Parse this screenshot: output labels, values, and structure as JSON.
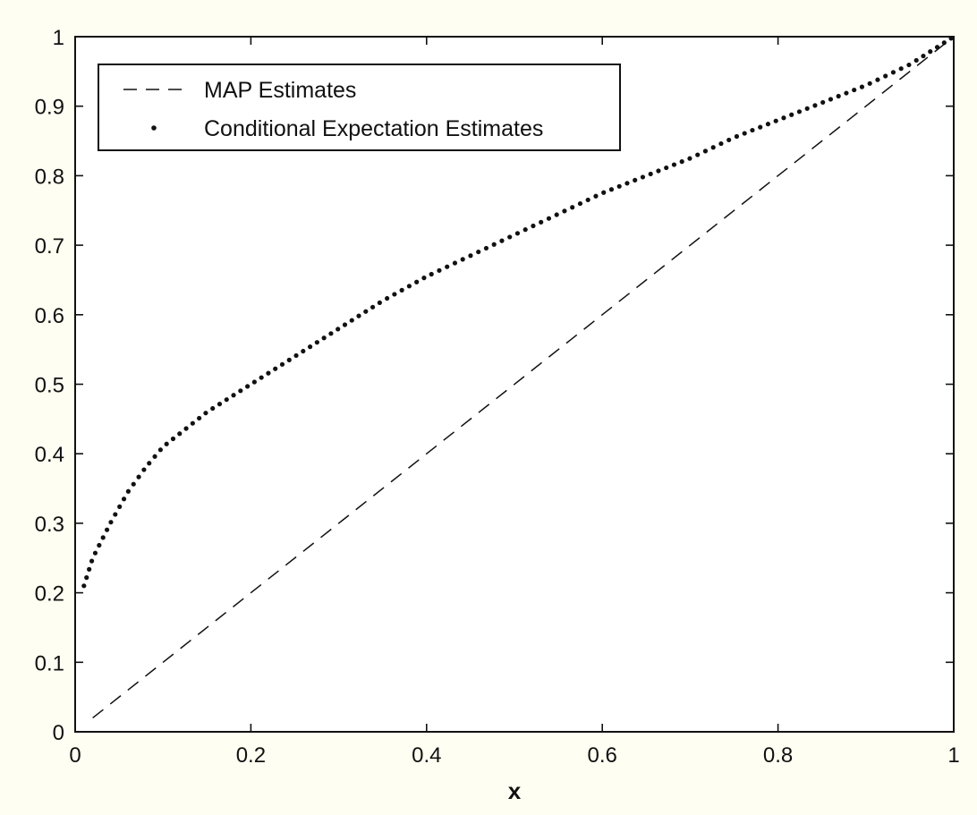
{
  "chart_data": {
    "type": "line",
    "title": "",
    "xlabel": "x",
    "ylabel": "",
    "xlim": [
      0,
      1
    ],
    "ylim": [
      0,
      1
    ],
    "xticks": [
      0,
      0.2,
      0.4,
      0.6,
      0.8,
      1
    ],
    "xtick_labels": [
      "0",
      "0.2",
      "0.4",
      "0.6",
      "0.8",
      "1"
    ],
    "yticks": [
      0,
      0.1,
      0.2,
      0.3,
      0.4,
      0.5,
      0.6,
      0.7,
      0.8,
      0.9,
      1
    ],
    "ytick_labels": [
      "0",
      "0.1",
      "0.2",
      "0.3",
      "0.4",
      "0.5",
      "0.6",
      "0.7",
      "0.8",
      "0.9",
      "1"
    ],
    "grid": false,
    "legend_position": "top-left",
    "series": [
      {
        "name": "MAP Estimates",
        "style": "dashed",
        "color": "#111111",
        "x": [
          0.02,
          1.0
        ],
        "y": [
          0.02,
          1.0
        ]
      },
      {
        "name": "Conditional Expectation Estimates",
        "style": "dotted",
        "color": "#111111",
        "x": [
          0.01,
          0.02,
          0.04,
          0.06,
          0.08,
          0.1,
          0.15,
          0.2,
          0.25,
          0.3,
          0.35,
          0.4,
          0.45,
          0.5,
          0.55,
          0.6,
          0.65,
          0.7,
          0.75,
          0.8,
          0.85,
          0.9,
          0.95,
          1.0
        ],
        "y": [
          0.21,
          0.25,
          0.3,
          0.345,
          0.38,
          0.41,
          0.46,
          0.5,
          0.54,
          0.58,
          0.62,
          0.655,
          0.685,
          0.715,
          0.745,
          0.775,
          0.8,
          0.825,
          0.855,
          0.88,
          0.905,
          0.93,
          0.96,
          1.0
        ]
      }
    ]
  }
}
